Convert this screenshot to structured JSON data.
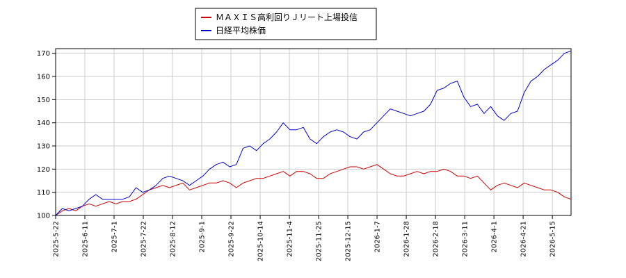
{
  "chart_data": {
    "type": "line",
    "title": "",
    "xlabel": "",
    "ylabel": "",
    "ylim": [
      100,
      172
    ],
    "grid": true,
    "legend_placement": "top-center",
    "y_ticks": [
      100,
      110,
      120,
      130,
      140,
      150,
      160,
      170
    ],
    "x_ticks": [
      "2025-5-22",
      "2025-6-11",
      "2025-7-1",
      "2025-7-22",
      "2025-8-12",
      "2025-9-1",
      "2025-9-22",
      "2025-10-14",
      "2025-11-4",
      "2025-11-25",
      "2025-12-15",
      "2026-1-7",
      "2026-1-28",
      "2026-2-18",
      "2026-3-11",
      "2026-4-1",
      "2026-4-21",
      "2026-5-15"
    ],
    "series": [
      {
        "name": "ＭＡＸＩＳ高利回りＪリート上場投信",
        "color": "#cc0000",
        "values": [
          100,
          102,
          103,
          102,
          104,
          105,
          104,
          105,
          106,
          105,
          106,
          106,
          107,
          109,
          111,
          112,
          113,
          112,
          113,
          114,
          111,
          112,
          113,
          114,
          114,
          115,
          114,
          112,
          114,
          115,
          116,
          116,
          117,
          118,
          119,
          117,
          119,
          119,
          118,
          116,
          116,
          118,
          119,
          120,
          121,
          121,
          120,
          121,
          122,
          120,
          118,
          117,
          117,
          118,
          119,
          118,
          119,
          119,
          120,
          119,
          117,
          117,
          116,
          117,
          114,
          111,
          113,
          114,
          113,
          112,
          114,
          113,
          112,
          111,
          111,
          110,
          108,
          107
        ]
      },
      {
        "name": "日経平均株価",
        "color": "#0000cc",
        "values": [
          100,
          103,
          102,
          103,
          104,
          107,
          109,
          107,
          107,
          107,
          107,
          108,
          112,
          110,
          111,
          113,
          116,
          117,
          116,
          115,
          113,
          115,
          117,
          120,
          122,
          123,
          121,
          122,
          129,
          130,
          128,
          131,
          133,
          136,
          140,
          137,
          137,
          138,
          133,
          131,
          134,
          136,
          137,
          136,
          134,
          133,
          136,
          137,
          140,
          143,
          146,
          145,
          144,
          143,
          144,
          145,
          148,
          154,
          155,
          157,
          158,
          151,
          147,
          148,
          144,
          147,
          143,
          141,
          144,
          145,
          153,
          158,
          160,
          163,
          165,
          167,
          170,
          171
        ]
      }
    ]
  }
}
